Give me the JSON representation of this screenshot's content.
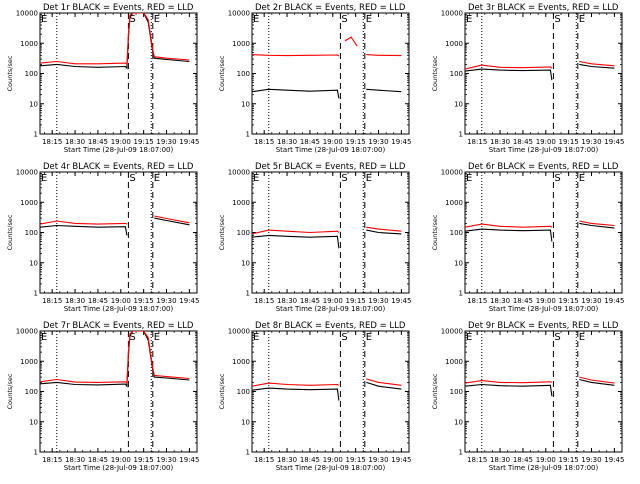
{
  "figure": {
    "ylabel": "Counts/sec",
    "xlabel": "Start Time (28-Jul-09 18:07:00)",
    "x_tick_labels": [
      "18:15",
      "18:30",
      "18:45",
      "19:00",
      "19:15",
      "19:30",
      "19:45"
    ],
    "x_tick_times": [
      "18:15",
      "18:30",
      "18:45",
      "19:00",
      "19:15",
      "19:30",
      "19:45"
    ],
    "y_tick_labels": [
      "1",
      "10",
      "100",
      "1000",
      "10000"
    ],
    "marker_labels": {
      "start": "E",
      "flare": "S",
      "end": "E"
    },
    "colors": {
      "events": "#000000",
      "lld": "#ff0000",
      "axes": "#000000",
      "background": "#ffffff"
    }
  },
  "chart_data": [
    {
      "type": "line",
      "title": "Det 1r BLACK = Events, RED = LLD",
      "xlabel": "Start Time (28-Jul-09 18:07:00)",
      "ylabel": "Counts/sec",
      "yscale": "log",
      "ylim": [
        1,
        10000
      ],
      "xlim": [
        "18:07",
        "19:50"
      ],
      "markers": {
        "start": "18:07",
        "dotted": [
          "18:18",
          "19:20"
        ],
        "dashed": [
          "19:05",
          "19:21"
        ]
      },
      "series": [
        {
          "name": "Events",
          "color": "#000000",
          "x": [
            "18:07",
            "18:18",
            "18:30",
            "18:45",
            "19:03",
            "19:04",
            "19:05",
            "19:06",
            "19:08",
            "19:15",
            "19:18",
            "19:21",
            "19:22",
            "19:30",
            "19:45"
          ],
          "y": [
            180,
            200,
            170,
            160,
            170,
            150,
            1500,
            7500,
            10000,
            10000,
            5000,
            500,
            320,
            290,
            250
          ]
        },
        {
          "name": "LLD",
          "color": "#ff0000",
          "x": [
            "18:07",
            "18:18",
            "18:30",
            "18:45",
            "19:03",
            "19:04",
            "19:05",
            "19:06",
            "19:08",
            "19:15",
            "19:18",
            "19:21",
            "19:22",
            "19:30",
            "19:45"
          ],
          "y": [
            220,
            250,
            210,
            210,
            220,
            200,
            2000,
            8500,
            10000,
            10000,
            6000,
            600,
            360,
            320,
            280
          ]
        }
      ]
    },
    {
      "type": "line",
      "title": "Det 2r BLACK = Events, RED = LLD",
      "xlabel": "Start Time (28-Jul-09 18:07:00)",
      "ylabel": "Counts/sec",
      "yscale": "log",
      "ylim": [
        1,
        10000
      ],
      "xlim": [
        "18:07",
        "19:50"
      ],
      "markers": {
        "start": "18:07",
        "dotted": [
          "18:18",
          "19:20"
        ],
        "dashed": [
          "19:05",
          "19:21"
        ]
      },
      "series": [
        {
          "name": "Events",
          "color": "#000000",
          "x": [
            "18:07",
            "18:18",
            "18:30",
            "18:45",
            "19:03",
            "19:04"
          ],
          "y": [
            25,
            30,
            28,
            26,
            28,
            15
          ]
        },
        {
          "name": "Events",
          "color": "#000000",
          "x": [
            "19:22",
            "19:30",
            "19:45"
          ],
          "y": [
            30,
            28,
            25
          ]
        },
        {
          "name": "LLD",
          "color": "#ff0000",
          "x": [
            "18:07",
            "18:18",
            "18:30",
            "18:45",
            "19:03",
            "19:04"
          ],
          "y": [
            420,
            400,
            390,
            400,
            410,
            380
          ]
        },
        {
          "name": "LLD",
          "color": "#ff0000",
          "x": [
            "19:08",
            "19:12",
            "19:16"
          ],
          "y": [
            1200,
            1600,
            800
          ]
        },
        {
          "name": "LLD",
          "color": "#ff0000",
          "x": [
            "19:22",
            "19:30",
            "19:45"
          ],
          "y": [
            420,
            400,
            390
          ]
        }
      ]
    },
    {
      "type": "line",
      "title": "Det 3r BLACK = Events, RED = LLD",
      "xlabel": "Start Time (28-Jul-09 18:07:00)",
      "ylabel": "Counts/sec",
      "yscale": "log",
      "ylim": [
        1,
        10000
      ],
      "xlim": [
        "18:07",
        "19:50"
      ],
      "markers": {
        "start": "18:07",
        "dotted": [
          "18:18",
          "19:20"
        ],
        "dashed": [
          "19:05",
          "19:21"
        ]
      },
      "series": [
        {
          "name": "Events",
          "color": "#000000",
          "x": [
            "18:07",
            "18:18",
            "18:30",
            "18:45",
            "19:03",
            "19:04"
          ],
          "y": [
            120,
            140,
            130,
            125,
            130,
            60
          ]
        },
        {
          "name": "Events",
          "color": "#000000",
          "x": [
            "19:22",
            "19:30",
            "19:45"
          ],
          "y": [
            200,
            170,
            150
          ]
        },
        {
          "name": "LLD",
          "color": "#ff0000",
          "x": [
            "18:07",
            "18:18",
            "18:30",
            "18:45",
            "19:03",
            "19:04"
          ],
          "y": [
            140,
            190,
            160,
            155,
            165,
            150
          ]
        },
        {
          "name": "LLD",
          "color": "#ff0000",
          "x": [
            "19:22",
            "19:30",
            "19:45"
          ],
          "y": [
            250,
            210,
            180
          ]
        }
      ]
    },
    {
      "type": "line",
      "title": "Det 4r BLACK = Events, RED = LLD",
      "xlabel": "Start Time (28-Jul-09 18:07:00)",
      "ylabel": "Counts/sec",
      "yscale": "log",
      "ylim": [
        1,
        10000
      ],
      "xlim": [
        "18:07",
        "19:50"
      ],
      "markers": {
        "start": "18:07",
        "dotted": [
          "18:18",
          "19:20"
        ],
        "dashed": [
          "19:05",
          "19:21"
        ]
      },
      "series": [
        {
          "name": "Events",
          "color": "#000000",
          "x": [
            "18:07",
            "18:18",
            "18:30",
            "18:45",
            "19:03",
            "19:04"
          ],
          "y": [
            150,
            170,
            160,
            150,
            155,
            80
          ]
        },
        {
          "name": "Events",
          "color": "#000000",
          "x": [
            "19:22",
            "19:30",
            "19:45"
          ],
          "y": [
            300,
            250,
            180
          ]
        },
        {
          "name": "LLD",
          "color": "#ff0000",
          "x": [
            "18:07",
            "18:18",
            "18:30",
            "18:45",
            "19:03",
            "19:04"
          ],
          "y": [
            190,
            240,
            200,
            190,
            200,
            190
          ]
        },
        {
          "name": "LLD",
          "color": "#ff0000",
          "x": [
            "19:22",
            "19:30",
            "19:45"
          ],
          "y": [
            350,
            290,
            210
          ]
        }
      ]
    },
    {
      "type": "line",
      "title": "Det 5r BLACK = Events, RED = LLD",
      "xlabel": "Start Time (28-Jul-09 18:07:00)",
      "ylabel": "Counts/sec",
      "yscale": "log",
      "ylim": [
        1,
        10000
      ],
      "xlim": [
        "18:07",
        "19:50"
      ],
      "markers": {
        "start": "18:07",
        "dotted": [
          "18:18",
          "19:20"
        ],
        "dashed": [
          "19:05",
          "19:21"
        ]
      },
      "series": [
        {
          "name": "Events",
          "color": "#000000",
          "x": [
            "18:07",
            "18:18",
            "18:30",
            "18:45",
            "19:03",
            "19:04"
          ],
          "y": [
            70,
            80,
            75,
            70,
            75,
            30
          ]
        },
        {
          "name": "Events",
          "color": "#000000",
          "x": [
            "19:22",
            "19:30",
            "19:45"
          ],
          "y": [
            120,
            100,
            90
          ]
        },
        {
          "name": "LLD",
          "color": "#ff0000",
          "x": [
            "18:07",
            "18:18",
            "18:30",
            "18:45",
            "19:03",
            "19:04"
          ],
          "y": [
            90,
            120,
            110,
            100,
            110,
            100
          ]
        },
        {
          "name": "LLD",
          "color": "#ff0000",
          "x": [
            "19:22",
            "19:30",
            "19:45"
          ],
          "y": [
            150,
            130,
            110
          ]
        }
      ]
    },
    {
      "type": "line",
      "title": "Det 6r BLACK = Events, RED = LLD",
      "xlabel": "Start Time (28-Jul-09 18:07:00)",
      "ylabel": "Counts/sec",
      "yscale": "log",
      "ylim": [
        1,
        10000
      ],
      "xlim": [
        "18:07",
        "19:50"
      ],
      "markers": {
        "start": "18:07",
        "dotted": [
          "18:18",
          "19:20"
        ],
        "dashed": [
          "19:05",
          "19:21"
        ]
      },
      "series": [
        {
          "name": "Events",
          "color": "#000000",
          "x": [
            "18:07",
            "18:18",
            "18:30",
            "18:45",
            "19:03",
            "19:04"
          ],
          "y": [
            110,
            130,
            120,
            115,
            120,
            50
          ]
        },
        {
          "name": "Events",
          "color": "#000000",
          "x": [
            "19:22",
            "19:30",
            "19:45"
          ],
          "y": [
            200,
            170,
            140
          ]
        },
        {
          "name": "LLD",
          "color": "#ff0000",
          "x": [
            "18:07",
            "18:18",
            "18:30",
            "18:45",
            "19:03",
            "19:04"
          ],
          "y": [
            150,
            190,
            160,
            150,
            160,
            150
          ]
        },
        {
          "name": "LLD",
          "color": "#ff0000",
          "x": [
            "19:22",
            "19:30",
            "19:45"
          ],
          "y": [
            240,
            200,
            170
          ]
        }
      ]
    },
    {
      "type": "line",
      "title": "Det 7r BLACK = Events, RED = LLD",
      "xlabel": "Start Time (28-Jul-09 18:07:00)",
      "ylabel": "Counts/sec",
      "yscale": "log",
      "ylim": [
        1,
        10000
      ],
      "xlim": [
        "18:07",
        "19:50"
      ],
      "markers": {
        "start": "18:07",
        "dotted": [
          "18:18",
          "19:20"
        ],
        "dashed": [
          "19:05",
          "19:21"
        ]
      },
      "series": [
        {
          "name": "Events",
          "color": "#000000",
          "x": [
            "18:07",
            "18:18",
            "18:30",
            "18:45",
            "19:03",
            "19:04",
            "19:05",
            "19:06",
            "19:08",
            "19:15",
            "19:18",
            "19:21",
            "19:22",
            "19:30",
            "19:45"
          ],
          "y": [
            180,
            200,
            170,
            165,
            175,
            150,
            1500,
            7000,
            10000,
            10000,
            5000,
            500,
            300,
            280,
            240
          ]
        },
        {
          "name": "LLD",
          "color": "#ff0000",
          "x": [
            "18:07",
            "18:18",
            "18:30",
            "18:45",
            "19:03",
            "19:04",
            "19:05",
            "19:06",
            "19:08",
            "19:15",
            "19:18",
            "19:21",
            "19:22",
            "19:30",
            "19:45"
          ],
          "y": [
            210,
            250,
            205,
            200,
            210,
            190,
            2000,
            8000,
            10000,
            10000,
            6000,
            600,
            340,
            310,
            270
          ]
        }
      ]
    },
    {
      "type": "line",
      "title": "Det 8r BLACK = Events, RED = LLD",
      "xlabel": "Start Time (28-Jul-09 18:07:00)",
      "ylabel": "Counts/sec",
      "yscale": "log",
      "ylim": [
        1,
        10000
      ],
      "xlim": [
        "18:07",
        "19:50"
      ],
      "markers": {
        "start": "18:07",
        "dotted": [
          "18:18",
          "19:20"
        ],
        "dashed": [
          "19:05",
          "19:21"
        ]
      },
      "series": [
        {
          "name": "Events",
          "color": "#000000",
          "x": [
            "18:07",
            "18:18",
            "18:30",
            "18:45",
            "19:03",
            "19:04"
          ],
          "y": [
            110,
            130,
            120,
            115,
            120,
            50
          ]
        },
        {
          "name": "Events",
          "color": "#000000",
          "x": [
            "19:22",
            "19:30",
            "19:45"
          ],
          "y": [
            200,
            150,
            120
          ]
        },
        {
          "name": "LLD",
          "color": "#ff0000",
          "x": [
            "18:07",
            "18:18",
            "18:30",
            "18:45",
            "19:03",
            "19:04"
          ],
          "y": [
            150,
            190,
            170,
            160,
            170,
            160
          ]
        },
        {
          "name": "LLD",
          "color": "#ff0000",
          "x": [
            "19:22",
            "19:30",
            "19:45"
          ],
          "y": [
            260,
            200,
            160
          ]
        }
      ]
    },
    {
      "type": "line",
      "title": "Det 9r BLACK = Events, RED = LLD",
      "xlabel": "Start Time (28-Jul-09 18:07:00)",
      "ylabel": "Counts/sec",
      "yscale": "log",
      "ylim": [
        1,
        10000
      ],
      "xlim": [
        "18:07",
        "19:50"
      ],
      "markers": {
        "start": "18:07",
        "dotted": [
          "18:18",
          "19:20"
        ],
        "dashed": [
          "19:05",
          "19:21"
        ]
      },
      "series": [
        {
          "name": "Events",
          "color": "#000000",
          "x": [
            "18:07",
            "18:18",
            "18:30",
            "18:45",
            "19:03",
            "19:04"
          ],
          "y": [
            150,
            170,
            155,
            150,
            160,
            70
          ]
        },
        {
          "name": "Events",
          "color": "#000000",
          "x": [
            "19:22",
            "19:30",
            "19:45"
          ],
          "y": [
            250,
            200,
            160
          ]
        },
        {
          "name": "LLD",
          "color": "#ff0000",
          "x": [
            "18:07",
            "18:18",
            "18:30",
            "18:45",
            "19:03",
            "19:04"
          ],
          "y": [
            190,
            230,
            200,
            195,
            210,
            200
          ]
        },
        {
          "name": "LLD",
          "color": "#ff0000",
          "x": [
            "19:22",
            "19:30",
            "19:45"
          ],
          "y": [
            300,
            240,
            190
          ]
        }
      ]
    }
  ]
}
